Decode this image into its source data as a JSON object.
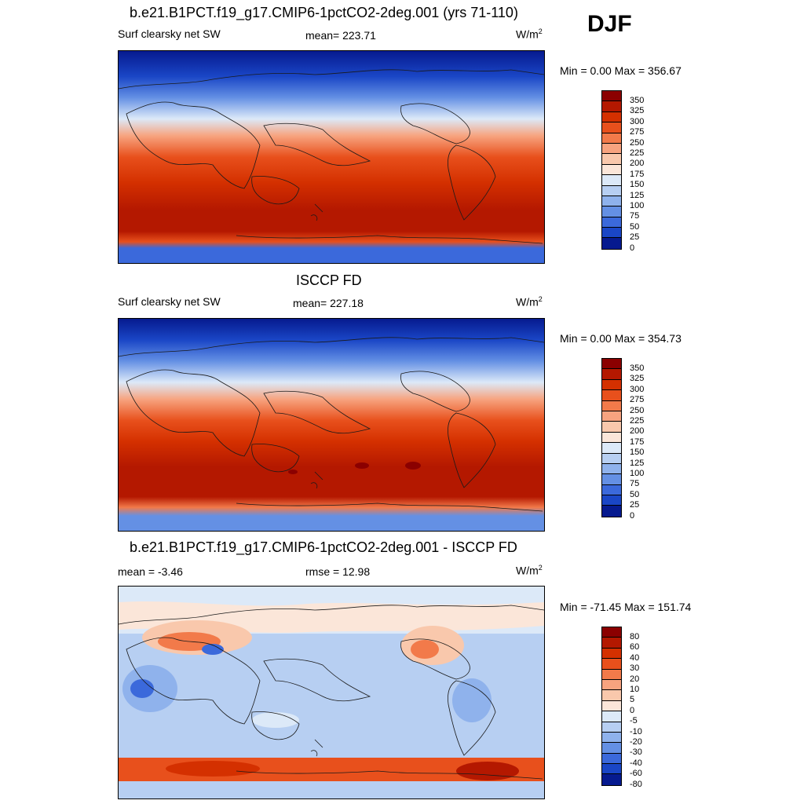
{
  "season": "DJF",
  "panels": [
    {
      "title": "b.e21.B1PCT.f19_g17.CMIP6-1pctCO2-2deg.001 (yrs 71-110)",
      "left_label": "Surf clearsky net SW",
      "center_label": "mean= 223.71",
      "units_base": "W/m",
      "units_sup": "2",
      "minmax": "Min =   0.00 Max = 356.67",
      "colorbar": {
        "labels": [
          "350",
          "325",
          "300",
          "275",
          "250",
          "225",
          "200",
          "175",
          "150",
          "125",
          "100",
          "75",
          "50",
          "25",
          "0"
        ],
        "colors": [
          "#8b0000",
          "#b41800",
          "#d43000",
          "#e8501c",
          "#f27a4a",
          "#f7a37f",
          "#f9c8ac",
          "#fbe6d9",
          "#dce9f8",
          "#b7cff2",
          "#8fb2ec",
          "#6490e4",
          "#3b69db",
          "#1a46c6",
          "#061a8f"
        ]
      }
    },
    {
      "title": "ISCCP FD",
      "left_label": "Surf clearsky net SW",
      "center_label": "mean= 227.18",
      "units_base": "W/m",
      "units_sup": "2",
      "minmax": "Min =   0.00 Max = 354.73",
      "colorbar": {
        "labels": [
          "350",
          "325",
          "300",
          "275",
          "250",
          "225",
          "200",
          "175",
          "150",
          "125",
          "100",
          "75",
          "50",
          "25",
          "0"
        ],
        "colors": [
          "#8b0000",
          "#b41800",
          "#d43000",
          "#e8501c",
          "#f27a4a",
          "#f7a37f",
          "#f9c8ac",
          "#fbe6d9",
          "#dce9f8",
          "#b7cff2",
          "#8fb2ec",
          "#6490e4",
          "#3b69db",
          "#1a46c6",
          "#061a8f"
        ]
      }
    },
    {
      "title": "b.e21.B1PCT.f19_g17.CMIP6-1pctCO2-2deg.001 - ISCCP FD",
      "left_label": "mean =  -3.46",
      "center_label": "rmse =  12.98",
      "units_base": "W/m",
      "units_sup": "2",
      "minmax": "Min = -71.45 Max = 151.74",
      "colorbar": {
        "labels": [
          "80",
          "60",
          "40",
          "30",
          "20",
          "10",
          "5",
          "0",
          "-5",
          "-10",
          "-20",
          "-30",
          "-40",
          "-60",
          "-80"
        ],
        "colors": [
          "#8b0000",
          "#b41800",
          "#d43000",
          "#e8501c",
          "#f27a4a",
          "#f7a37f",
          "#f9c8ac",
          "#fbe6d9",
          "#dce9f8",
          "#b7cff2",
          "#8fb2ec",
          "#6490e4",
          "#3b69db",
          "#1a46c6",
          "#061a8f"
        ]
      }
    }
  ]
}
